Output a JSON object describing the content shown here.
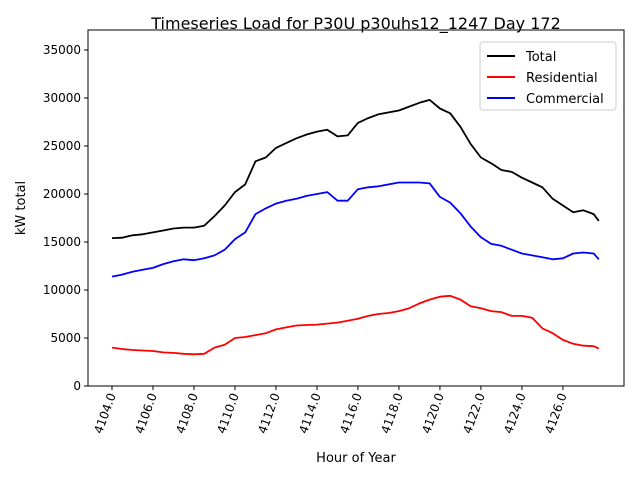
{
  "chart_data": {
    "type": "line",
    "title": "Timeseries Load for P30U p30uhs12_1247  Day 172",
    "xlabel": "Hour of Year",
    "ylabel": "kW total",
    "xlim": [
      4102.83,
      4128.98
    ],
    "ylim": [
      0,
      37080
    ],
    "grid": false,
    "legend_position": "top-right",
    "xticks": [
      4104,
      4106,
      4108,
      4110,
      4112,
      4114,
      4116,
      4118,
      4120,
      4122,
      4124,
      4126
    ],
    "xtick_labels": [
      "4104.0",
      "4106.0",
      "4108.0",
      "4110.0",
      "4112.0",
      "4114.0",
      "4116.0",
      "4118.0",
      "4120.0",
      "4122.0",
      "4124.0",
      "4126.0"
    ],
    "yticks": [
      0,
      5000,
      10000,
      15000,
      20000,
      25000,
      30000,
      35000
    ],
    "ytick_labels": [
      "0",
      "5000",
      "10000",
      "15000",
      "20000",
      "25000",
      "30000",
      "35000"
    ],
    "x": [
      4104,
      4104.5,
      4105,
      4105.5,
      4106,
      4106.5,
      4107,
      4107.5,
      4108,
      4108.5,
      4109,
      4109.5,
      4110,
      4110.5,
      4111,
      4111.5,
      4112,
      4112.5,
      4113,
      4113.5,
      4114,
      4114.5,
      4115,
      4115.5,
      4116,
      4116.5,
      4117,
      4117.5,
      4118,
      4118.5,
      4119,
      4119.5,
      4120,
      4120.5,
      4121,
      4121.5,
      4122,
      4122.5,
      4123,
      4123.5,
      4124,
      4124.5,
      4125,
      4125.5,
      4126,
      4126.5,
      4127,
      4127.5,
      4127.75
    ],
    "series": [
      {
        "name": "Total",
        "color": "#000000",
        "values": [
          15400,
          15450,
          15700,
          15800,
          16000,
          16200,
          16400,
          16500,
          16500,
          16700,
          17700,
          18800,
          20200,
          21000,
          23400,
          23800,
          24800,
          25300,
          25800,
          26200,
          26500,
          26700,
          26000,
          26100,
          27400,
          27900,
          28300,
          28500,
          28700,
          29100,
          29500,
          29800,
          28900,
          28400,
          27000,
          25200,
          23800,
          23200,
          22500,
          22300,
          21700,
          21200,
          20700,
          19500,
          18800,
          18100,
          18300,
          17900,
          17200
        ]
      },
      {
        "name": "Residential",
        "color": "#ff0000",
        "values": [
          4000,
          3850,
          3750,
          3700,
          3650,
          3500,
          3450,
          3350,
          3300,
          3350,
          4000,
          4300,
          5000,
          5100,
          5300,
          5500,
          5900,
          6100,
          6300,
          6350,
          6400,
          6500,
          6600,
          6800,
          7000,
          7300,
          7500,
          7600,
          7800,
          8100,
          8600,
          9000,
          9300,
          9400,
          9000,
          8300,
          8100,
          7800,
          7700,
          7300,
          7300,
          7100,
          6000,
          5500,
          4800,
          4400,
          4200,
          4150,
          3900
        ]
      },
      {
        "name": "Commercial",
        "color": "#0000ff",
        "values": [
          11400,
          11600,
          11900,
          12100,
          12300,
          12700,
          13000,
          13200,
          13100,
          13300,
          13600,
          14200,
          15300,
          16000,
          17900,
          18500,
          19000,
          19300,
          19500,
          19800,
          20000,
          20200,
          19300,
          19300,
          20500,
          20700,
          20800,
          21000,
          21200,
          21200,
          21200,
          21100,
          19700,
          19100,
          18000,
          16600,
          15500,
          14800,
          14600,
          14200,
          13800,
          13600,
          13400,
          13200,
          13300,
          13800,
          13900,
          13800,
          13200
        ]
      }
    ]
  }
}
